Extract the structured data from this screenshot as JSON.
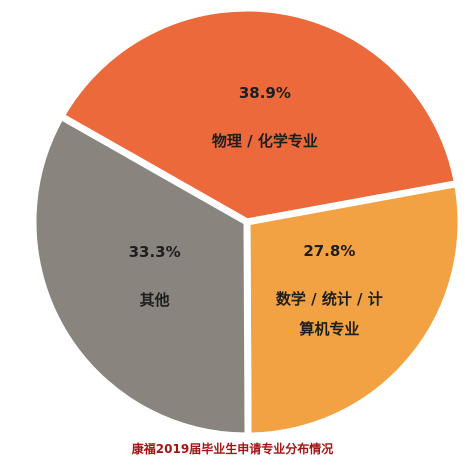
{
  "chart_data": {
    "type": "pie",
    "title": "康福2019届毕业生申请专业分布情况",
    "categories": [
      "物理 / 化学专业",
      "数学 / 统计 / 计算机专业",
      "其他"
    ],
    "values": [
      38.9,
      27.8,
      33.3
    ],
    "value_labels": [
      "38.9%",
      "27.8%",
      "33.3%"
    ],
    "colors": [
      "#ec693b",
      "#f2a242",
      "#8a847e"
    ]
  }
}
